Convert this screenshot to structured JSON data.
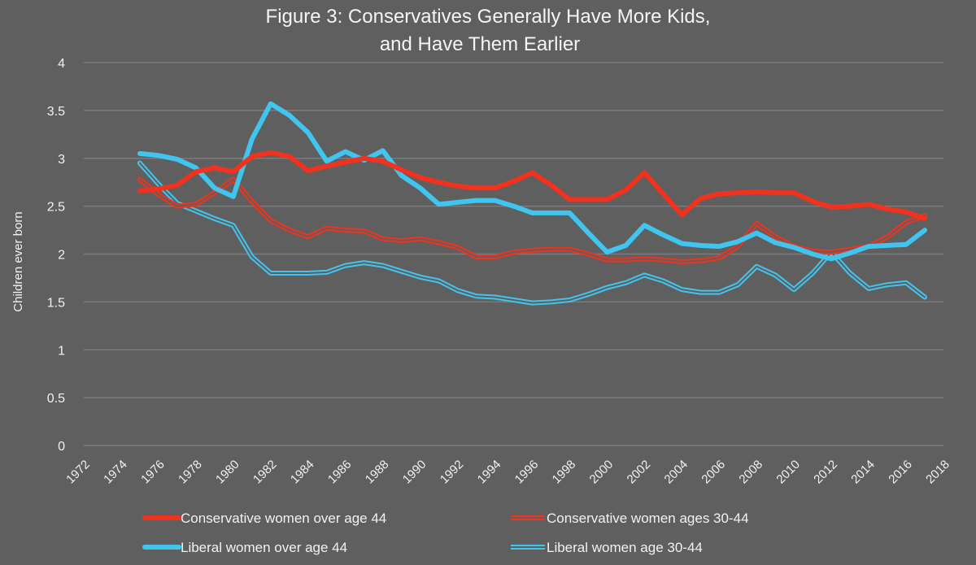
{
  "chart_data": {
    "type": "line",
    "title": [
      "Figure 3: Conservatives Generally Have More Kids,",
      "and Have Them Earlier"
    ],
    "xlabel": "",
    "ylabel": "Children ever born",
    "xlim": [
      1972,
      2018
    ],
    "ylim": [
      0,
      4
    ],
    "x_ticks": [
      "1972",
      "1974",
      "1976",
      "1978",
      "1980",
      "1982",
      "1984",
      "1986",
      "1988",
      "1990",
      "1992",
      "1994",
      "1996",
      "1998",
      "2000",
      "2002",
      "2004",
      "2006",
      "2008",
      "2010",
      "2012",
      "2014",
      "2016",
      "2018"
    ],
    "y_ticks": [
      "0",
      "0.5",
      "1",
      "1.5",
      "2",
      "2.5",
      "3",
      "3.5",
      "4"
    ],
    "grid": true,
    "legend_position": "bottom",
    "x": [
      1975,
      1976,
      1977,
      1978,
      1979,
      1980,
      1981,
      1982,
      1983,
      1984,
      1985,
      1986,
      1987,
      1988,
      1989,
      1990,
      1991,
      1992,
      1993,
      1994,
      1995,
      1996,
      1997,
      1998,
      1999,
      2000,
      2001,
      2002,
      2003,
      2004,
      2005,
      2006,
      2007,
      2008,
      2009,
      2010,
      2011,
      2012,
      2013,
      2014,
      2015,
      2016,
      2017
    ],
    "series": [
      {
        "name": "Conservative women over age 44",
        "color": "#f0321e",
        "style": "thick",
        "values": [
          2.66,
          2.68,
          2.72,
          2.86,
          2.9,
          2.86,
          3.02,
          3.06,
          3.02,
          2.87,
          2.92,
          2.96,
          3.0,
          2.97,
          2.88,
          2.8,
          2.75,
          2.71,
          2.69,
          2.69,
          2.76,
          2.85,
          2.72,
          2.57,
          2.57,
          2.57,
          2.67,
          2.85,
          2.63,
          2.41,
          2.58,
          2.63,
          2.64,
          2.65,
          2.64,
          2.64,
          2.55,
          2.49,
          2.5,
          2.52,
          2.47,
          2.44,
          2.37
        ]
      },
      {
        "name": "Conservative women ages 30-44",
        "color": "#f0321e",
        "style": "double",
        "values": [
          2.78,
          2.62,
          2.5,
          2.52,
          2.64,
          2.78,
          2.55,
          2.35,
          2.25,
          2.18,
          2.27,
          2.25,
          2.24,
          2.16,
          2.14,
          2.16,
          2.12,
          2.07,
          1.97,
          1.97,
          2.02,
          2.04,
          2.05,
          2.05,
          2.0,
          1.94,
          1.94,
          1.95,
          1.94,
          1.92,
          1.93,
          1.96,
          2.08,
          2.32,
          2.18,
          2.08,
          2.03,
          2.02,
          2.05,
          2.08,
          2.18,
          2.33,
          2.4
        ]
      },
      {
        "name": "Liberal women over age 44",
        "color": "#41c4ee",
        "style": "thick",
        "values": [
          3.05,
          3.03,
          2.99,
          2.9,
          2.69,
          2.6,
          3.2,
          3.57,
          3.45,
          3.27,
          2.97,
          3.07,
          2.98,
          3.08,
          2.82,
          2.69,
          2.52,
          2.54,
          2.56,
          2.56,
          2.5,
          2.43,
          2.43,
          2.43,
          2.22,
          2.02,
          2.09,
          2.3,
          2.2,
          2.11,
          2.09,
          2.08,
          2.13,
          2.22,
          2.12,
          2.07,
          2.0,
          1.95,
          2.01,
          2.08,
          2.09,
          2.1,
          2.25
        ]
      },
      {
        "name": "Liberal women age 30-44",
        "color": "#41c4ee",
        "style": "double",
        "values": [
          2.95,
          2.73,
          2.53,
          2.45,
          2.37,
          2.3,
          1.97,
          1.8,
          1.8,
          1.8,
          1.81,
          1.88,
          1.91,
          1.88,
          1.82,
          1.76,
          1.72,
          1.62,
          1.56,
          1.55,
          1.52,
          1.49,
          1.5,
          1.52,
          1.58,
          1.65,
          1.7,
          1.78,
          1.72,
          1.63,
          1.6,
          1.6,
          1.68,
          1.87,
          1.78,
          1.63,
          1.8,
          2.02,
          1.8,
          1.64,
          1.68,
          1.7,
          1.55
        ]
      }
    ]
  }
}
